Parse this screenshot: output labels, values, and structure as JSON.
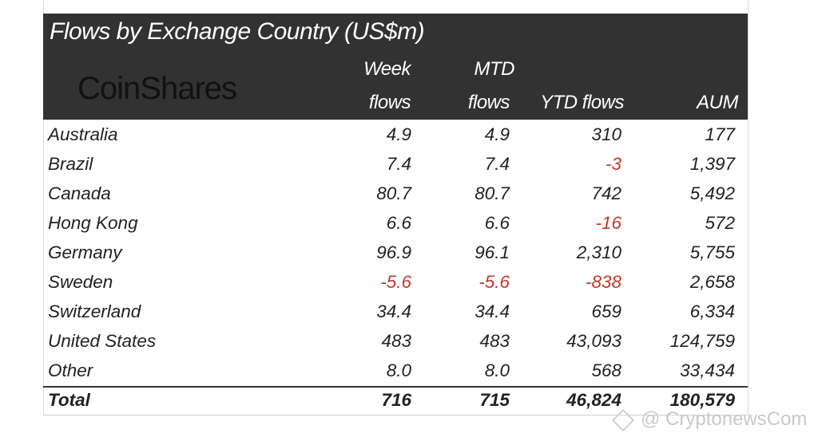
{
  "title": "Flows by Exchange Country (US$m)",
  "logo": "CoinShares",
  "columns": {
    "week_line1": "Week",
    "week_line2": "flows",
    "mtd_line1": "MTD",
    "mtd_line2": "flows",
    "ytd": "YTD flows",
    "aum": "AUM"
  },
  "rows": [
    {
      "country": "Australia",
      "week": "4.9",
      "mtd": "4.9",
      "ytd": "310",
      "aum": "177"
    },
    {
      "country": "Brazil",
      "week": "7.4",
      "mtd": "7.4",
      "ytd": "-3",
      "aum": "1,397"
    },
    {
      "country": "Canada",
      "week": "80.7",
      "mtd": "80.7",
      "ytd": "742",
      "aum": "5,492"
    },
    {
      "country": "Hong Kong",
      "week": "6.6",
      "mtd": "6.6",
      "ytd": "-16",
      "aum": "572"
    },
    {
      "country": "Germany",
      "week": "96.9",
      "mtd": "96.1",
      "ytd": "2,310",
      "aum": "5,755"
    },
    {
      "country": "Sweden",
      "week": "-5.6",
      "mtd": "-5.6",
      "ytd": "-838",
      "aum": "2,658"
    },
    {
      "country": "Switzerland",
      "week": "34.4",
      "mtd": "34.4",
      "ytd": "659",
      "aum": "6,334"
    },
    {
      "country": "United States",
      "week": "483",
      "mtd": "483",
      "ytd": "43,093",
      "aum": "124,759"
    },
    {
      "country": "Other",
      "week": "8.0",
      "mtd": "8.0",
      "ytd": "568",
      "aum": "33,434"
    }
  ],
  "total": {
    "label": "Total",
    "week": "716",
    "mtd": "715",
    "ytd": "46,824",
    "aum": "180,579"
  },
  "watermark": "@ CryptonewsCom",
  "colors": {
    "header_bg": "#323232",
    "negative": "#c0392b"
  }
}
